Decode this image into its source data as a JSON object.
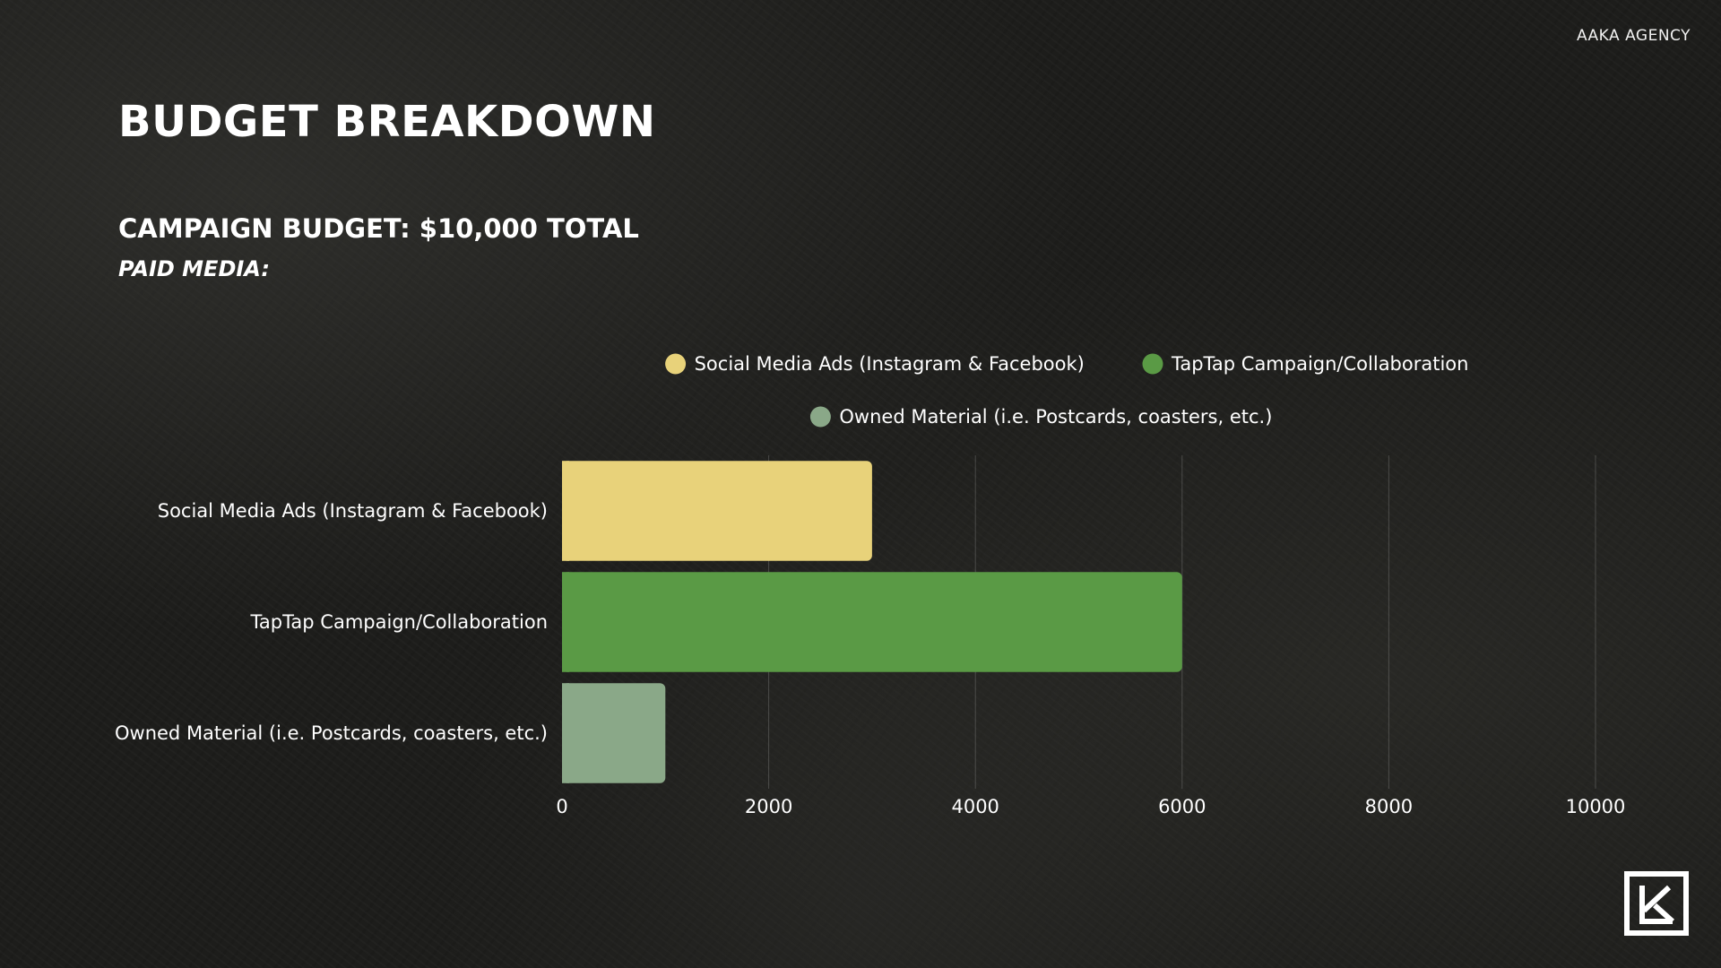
{
  "header": {
    "agency": "AAKA AGENCY",
    "title": "BUDGET BREAKDOWN",
    "subtitle": "CAMPAIGN BUDGET: $10,000 TOTAL",
    "section": "PAID MEDIA:"
  },
  "logo": {
    "icon": "agency-logo-icon"
  },
  "chart_data": {
    "type": "bar",
    "orientation": "horizontal",
    "title": "",
    "xlabel": "",
    "ylabel": "",
    "categories": [
      "Social Media Ads (Instagram & Facebook)",
      "TapTap Campaign/Collaboration",
      "Owned Material (i.e. Postcards, coasters, etc.)"
    ],
    "values": [
      3000,
      6000,
      1000
    ],
    "colors": [
      "#e8d27a",
      "#5a9a45",
      "#8aa888"
    ],
    "xlim": [
      0,
      10000
    ],
    "xticks": [
      "0",
      "2000",
      "4000",
      "6000",
      "8000",
      "10000"
    ],
    "grid": true,
    "legend": {
      "placement": "top-center",
      "entries": [
        "Social Media Ads (Instagram & Facebook)",
        "TapTap Campaign/Collaboration",
        "Owned Material (i.e. Postcards, coasters, etc.)"
      ]
    }
  }
}
